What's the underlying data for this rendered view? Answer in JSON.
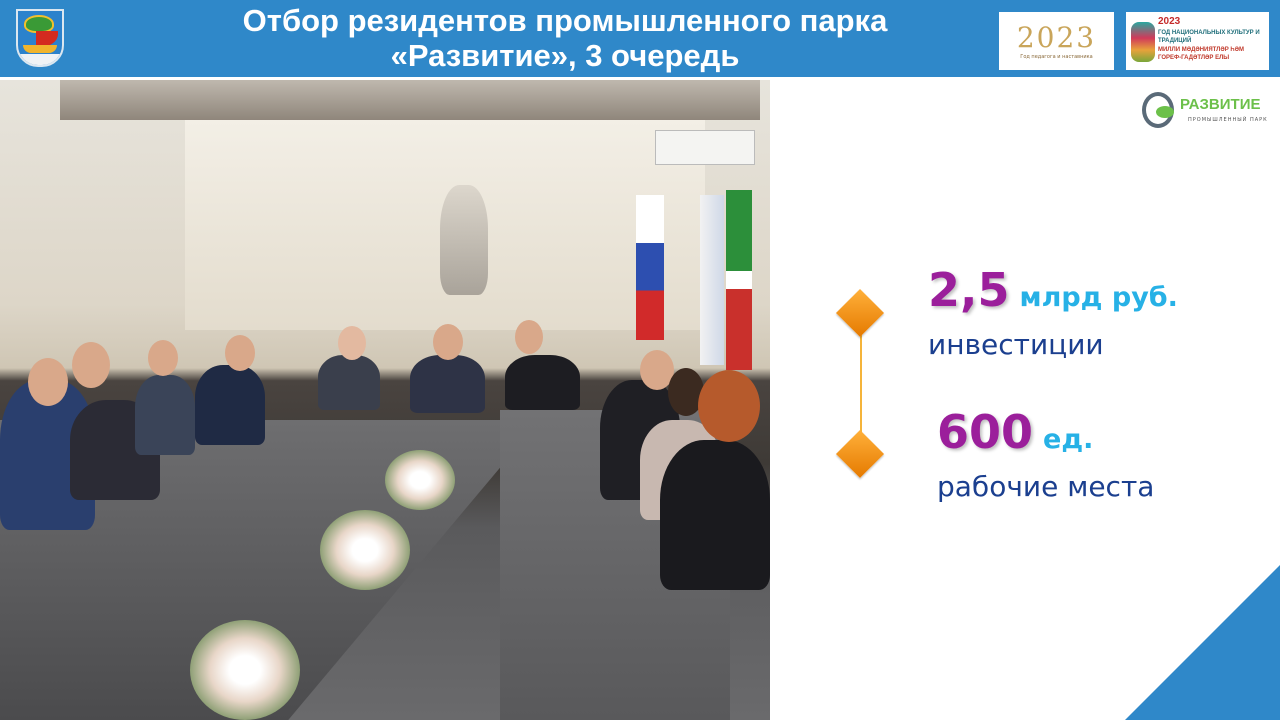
{
  "header": {
    "title_line1": "Отбор резидентов промышленного парка",
    "title_line2": "«Развитие», 3 очередь",
    "background_color": "#2f88c9",
    "logos": {
      "coat_of_arms": "city-coat-of-arms",
      "year_2023": {
        "text": "2023",
        "caption": "Год педагога и наставника"
      },
      "year_cultures": {
        "year": "2023",
        "line_ru": "ГОД НАЦИОНАЛЬНЫХ КУЛЬТУР И ТРАДИЦИЙ",
        "line_tt": "МИЛЛИ МӘДӘНИЯТЛӘР ҺӘМ ГОРЕФ-ГАДӘТЛӘР ЕЛЫ"
      }
    }
  },
  "park_logo": {
    "name": "РАЗВИТИЕ",
    "subtitle": "ПРОМЫШЛЕННЫЙ ПАРК"
  },
  "stats": [
    {
      "value": "2,5",
      "unit": "млрд руб.",
      "label": "инвестиции"
    },
    {
      "value": "600",
      "unit": "ед.",
      "label": "рабочие места"
    }
  ],
  "colors": {
    "value": "#9b1f9b",
    "unit": "#27b1e6",
    "label": "#1b3f8f",
    "marker": "#f39a1e",
    "accent": "#2f88c9"
  }
}
